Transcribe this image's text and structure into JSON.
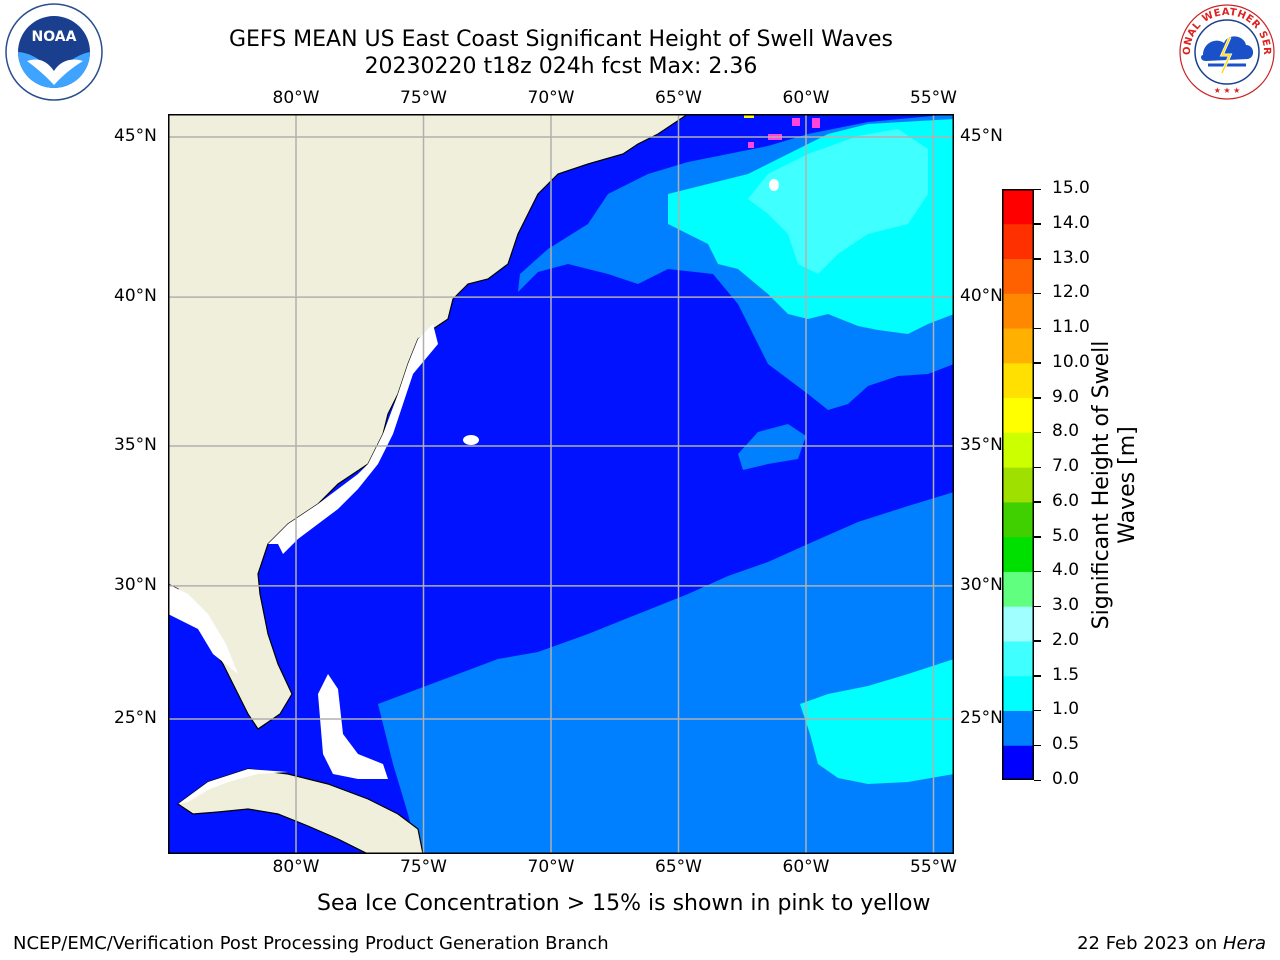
{
  "title": {
    "line1": "GEFS MEAN US East Coast Significant Height of Swell Waves",
    "line2": "20230220 t18z 024h fcst   Max: 2.36"
  },
  "logos": {
    "left": {
      "icon": "noaa-logo",
      "text": "NOAA"
    },
    "right": {
      "icon": "national-weather-service-logo",
      "text": "NATIONAL WEATHER SERVICE"
    }
  },
  "map": {
    "lon_ticks": [
      {
        "value": -80,
        "label": "80°W"
      },
      {
        "value": -75,
        "label": "75°W"
      },
      {
        "value": -70,
        "label": "70°W"
      },
      {
        "value": -65,
        "label": "65°W"
      },
      {
        "value": -60,
        "label": "60°W"
      },
      {
        "value": -55,
        "label": "55°W"
      }
    ],
    "lat_ticks": [
      {
        "value": 45,
        "label": "45°N"
      },
      {
        "value": 40,
        "label": "40°N"
      },
      {
        "value": 35,
        "label": "35°N"
      },
      {
        "value": 30,
        "label": "30°N"
      },
      {
        "value": 25,
        "label": "25°N"
      }
    ],
    "extent": {
      "lon_min": -85,
      "lon_max": -54.2,
      "lat_min": 20.5,
      "lat_max": 45.8
    },
    "grid": true,
    "colors": {
      "land": "#efefdc",
      "ocean_0_0.5": "#0012ff",
      "band_0.5_1.0": "#0080ff",
      "band_1.0_1.5": "#00ffff",
      "band_1.5_2.0": "#40ffff",
      "no_data": "#ffffff",
      "sea_ice_pink": "#ff44dd",
      "sea_ice_yellow": "#ffff00",
      "grid": "#b0b0b0"
    }
  },
  "colorbar": {
    "label": "Significant Height of Swell\nWaves [m]",
    "label_line1": "Significant Height of Swell",
    "label_line2": "Waves [m]",
    "levels": [
      "0.0",
      "0.5",
      "1.0",
      "1.5",
      "2.0",
      "3.0",
      "4.0",
      "5.0",
      "6.0",
      "7.0",
      "8.0",
      "9.0",
      "10.0",
      "11.0",
      "12.0",
      "13.0",
      "14.0",
      "15.0"
    ],
    "colors": [
      "#0000ff",
      "#0080ff",
      "#00ffff",
      "#40ffff",
      "#a0ffff",
      "#60ff80",
      "#00e000",
      "#40d000",
      "#a0e000",
      "#ccff00",
      "#ffff00",
      "#ffe000",
      "#ffb000",
      "#ff8800",
      "#ff6000",
      "#ff3000",
      "#ff0000"
    ]
  },
  "sea_ice_note": "Sea Ice Concentration > 15% is shown in pink to yellow",
  "footer": {
    "left": "NCEP/EMC/Verification Post Processing Product Generation Branch",
    "date": "22 Feb 2023 on ",
    "machine": "Hera"
  }
}
